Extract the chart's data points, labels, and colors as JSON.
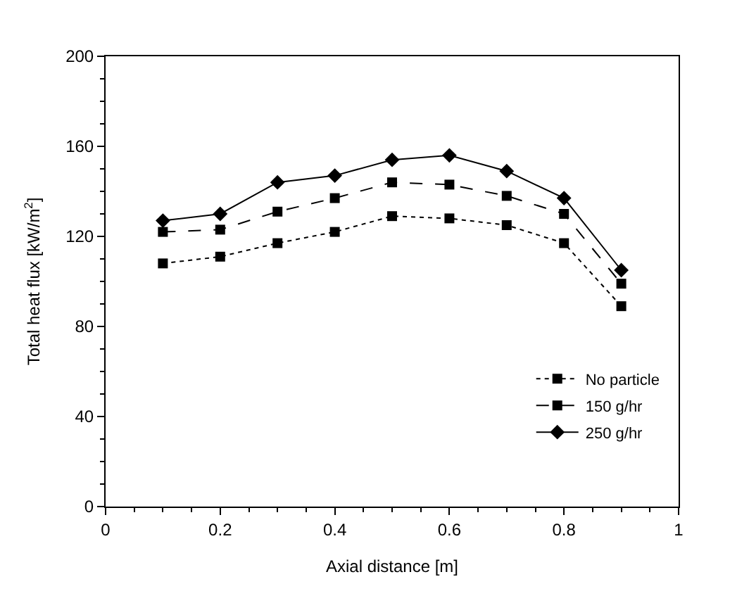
{
  "chart_data": {
    "type": "line",
    "xlabel": "Axial distance [m]",
    "ylabel": "Total heat flux [kW/m$^{2}$]",
    "x": [
      0.1,
      0.2,
      0.3,
      0.4,
      0.5,
      0.6,
      0.7,
      0.8,
      0.9
    ],
    "series": [
      {
        "name": "No particle",
        "color": "#000000",
        "marker": "square",
        "line_style": "dotted",
        "values": [
          108,
          111,
          117,
          122,
          129,
          128,
          125,
          117,
          89
        ]
      },
      {
        "name": "150 g/hr",
        "color": "#000000",
        "marker": "square",
        "line_style": "dashed",
        "values": [
          122,
          123,
          131,
          137,
          144,
          143,
          138,
          130,
          99
        ]
      },
      {
        "name": "250 g/hr",
        "color": "#000000",
        "marker": "diamond",
        "line_style": "solid",
        "values": [
          127,
          130,
          144,
          147,
          154,
          156,
          149,
          137,
          105
        ]
      }
    ],
    "xlim": [
      0,
      1
    ],
    "xticks": [
      0,
      0.2,
      0.4,
      0.6,
      0.8,
      1
    ],
    "ylim": [
      0,
      200
    ],
    "yticks": [
      0,
      40,
      80,
      120,
      160,
      200
    ],
    "legend": "bottom right"
  }
}
